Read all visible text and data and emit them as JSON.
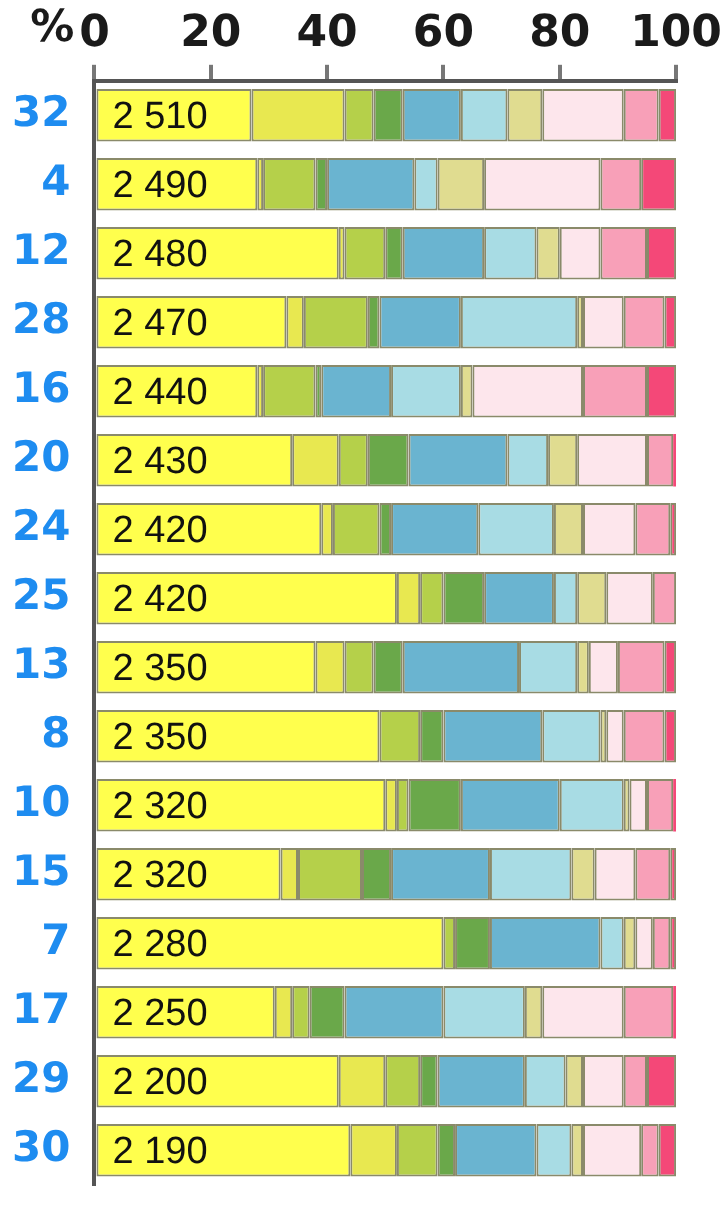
{
  "chart_data": {
    "type": "bar",
    "orientation": "horizontal",
    "stacked": true,
    "xlabel": "%",
    "xlim": [
      0,
      100
    ],
    "xticks": [
      0,
      20,
      40,
      60,
      80,
      100
    ],
    "grid": false,
    "legend": false,
    "categories": [
      "32",
      "4",
      "12",
      "28",
      "16",
      "20",
      "24",
      "25",
      "13",
      "8",
      "10",
      "15",
      "7",
      "17",
      "29",
      "30"
    ],
    "annotations": [
      "2 510",
      "2 490",
      "2 480",
      "2 470",
      "2 440",
      "2 430",
      "2 420",
      "2 420",
      "2 350",
      "2 350",
      "2 320",
      "2 320",
      "2 280",
      "2 250",
      "2 200",
      "2 190"
    ],
    "series": [
      {
        "color": "#ffff4d",
        "values": [
          27,
          28,
          42,
          33,
          28,
          34,
          39,
          52,
          38,
          49,
          50,
          32,
          60,
          31,
          42,
          44
        ]
      },
      {
        "color": "#e8e850",
        "values": [
          16,
          1,
          1,
          3,
          1,
          8,
          2,
          4,
          5,
          0,
          2,
          3,
          0,
          3,
          8,
          8
        ]
      },
      {
        "color": "#b5d04a",
        "values": [
          5,
          9,
          7,
          11,
          9,
          5,
          8,
          4,
          5,
          7,
          2,
          11,
          2,
          3,
          6,
          7
        ]
      },
      {
        "color": "#6aa84a",
        "values": [
          5,
          2,
          3,
          2,
          1,
          7,
          2,
          7,
          5,
          4,
          9,
          5,
          6,
          6,
          3,
          3
        ]
      },
      {
        "color": "#6ab4d0",
        "values": [
          10,
          15,
          14,
          14,
          12,
          17,
          15,
          12,
          20,
          17,
          17,
          17,
          19,
          17,
          15,
          14
        ]
      },
      {
        "color": "#a8dce4",
        "values": [
          8,
          4,
          9,
          20,
          12,
          7,
          13,
          4,
          10,
          10,
          11,
          14,
          4,
          14,
          7,
          6
        ]
      },
      {
        "color": "#e0dc90",
        "values": [
          6,
          8,
          4,
          1,
          2,
          5,
          5,
          5,
          2,
          1,
          1,
          4,
          2,
          3,
          3,
          2
        ]
      },
      {
        "color": "#fde6ec",
        "values": [
          14,
          20,
          7,
          7,
          19,
          12,
          9,
          8,
          5,
          3,
          3,
          7,
          3,
          14,
          7,
          10
        ]
      },
      {
        "color": "#f8a0b8",
        "values": [
          6,
          7,
          8,
          7,
          11,
          4.5,
          6,
          4,
          8,
          7,
          4.5,
          6,
          3,
          8.5,
          4,
          3
        ]
      },
      {
        "color": "#f44878",
        "values": [
          3,
          6,
          5,
          2,
          5,
          0.5,
          1,
          0,
          2,
          2,
          0.5,
          1,
          1,
          0.5,
          5,
          3
        ]
      }
    ]
  }
}
